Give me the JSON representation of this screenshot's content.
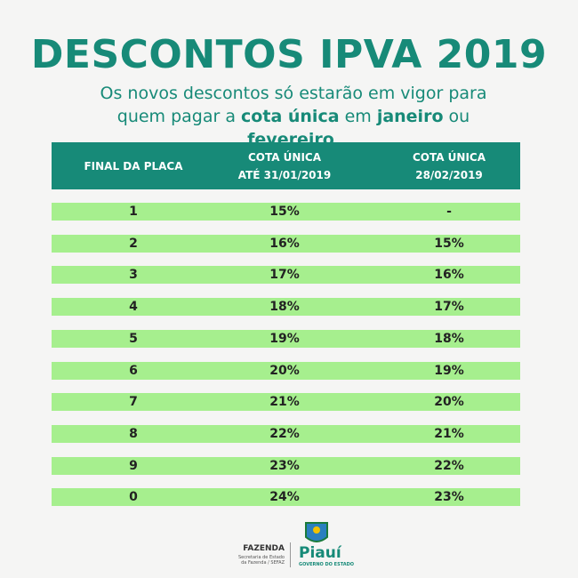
{
  "header": {
    "title": "DESCONTOS IPVA 2019",
    "subtitle": [
      {
        "text": "Os novos descontos só estarão em vigor para quem pagar a ",
        "bold": false
      },
      {
        "text": "cota única",
        "bold": true
      },
      {
        "text": " em ",
        "bold": false
      },
      {
        "text": "janeiro",
        "bold": true
      },
      {
        "text": " ou ",
        "bold": false
      },
      {
        "text": "fevereiro",
        "bold": true
      },
      {
        "text": ".",
        "bold": false
      }
    ]
  },
  "table": {
    "columns": [
      [
        "FINAL DA PLACA"
      ],
      [
        "COTA ÚNICA",
        "ATÉ 31/01/2019"
      ],
      [
        "COTA ÚNICA",
        "28/02/2019"
      ]
    ],
    "rows": [
      [
        "1",
        "15%",
        "-"
      ],
      [
        "2",
        "16%",
        "15%"
      ],
      [
        "3",
        "17%",
        "16%"
      ],
      [
        "4",
        "18%",
        "17%"
      ],
      [
        "5",
        "19%",
        "18%"
      ],
      [
        "6",
        "20%",
        "19%"
      ],
      [
        "7",
        "21%",
        "20%"
      ],
      [
        "8",
        "22%",
        "21%"
      ],
      [
        "9",
        "23%",
        "22%"
      ],
      [
        "0",
        "24%",
        "23%"
      ]
    ]
  },
  "footer": {
    "fazenda": "FAZENDA",
    "fazenda_sub": "Secretaria de Estado da Fazenda / SEFAZ",
    "state": "Piauí",
    "state_sub": "GOVERNO DO ESTADO"
  }
}
